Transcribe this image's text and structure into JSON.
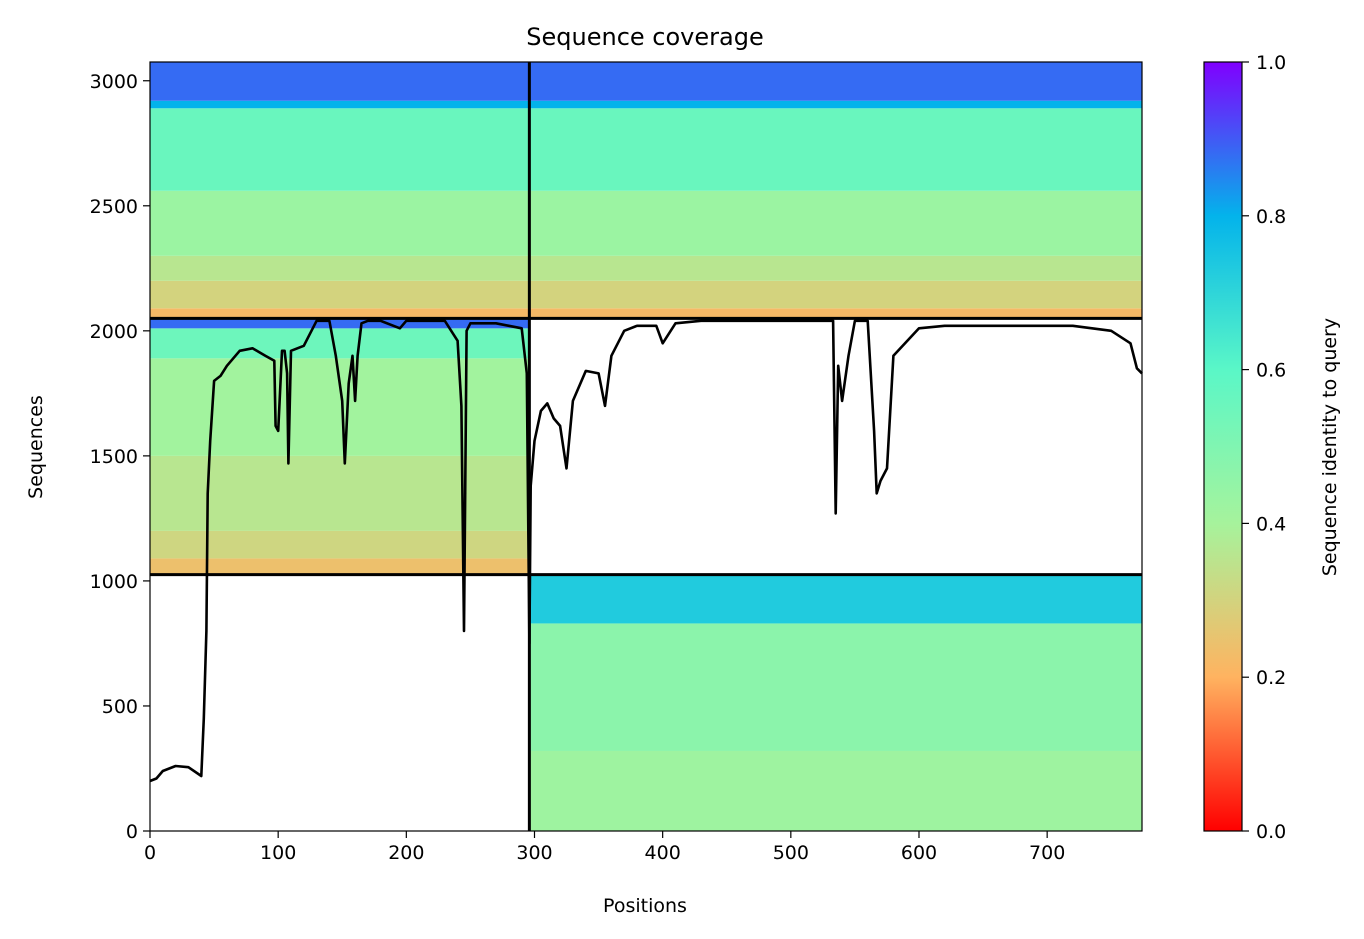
{
  "chart_data": {
    "type": "heatmap",
    "title": "Sequence coverage",
    "xlabel": "Positions",
    "ylabel": "Sequences",
    "xlim": [
      0,
      774
    ],
    "ylim": [
      0,
      3075
    ],
    "xticks": [
      "0",
      "100",
      "200",
      "300",
      "400",
      "500",
      "600",
      "700"
    ],
    "yticks": [
      "0",
      "500",
      "1000",
      "1500",
      "2000",
      "2500",
      "3000"
    ],
    "colorbar": {
      "label": "Sequence identity to query",
      "range": [
        0,
        1
      ],
      "ticks": [
        "0.0",
        "0.2",
        "0.4",
        "0.6",
        "0.8",
        "1.0"
      ],
      "colormap": "rainbow_r",
      "colors": [
        "#ff0000",
        "#ffb360",
        "#a6f39c",
        "#5af7c7",
        "#03b3eb",
        "#8000ff"
      ]
    },
    "blocks": [
      {
        "x": [
          296,
          774
        ],
        "y": [
          0,
          1025
        ],
        "identity_bands": [
          {
            "y": [
              0,
              320
            ],
            "identity": 0.42
          },
          {
            "y": [
              320,
              830
            ],
            "identity": 0.47
          },
          {
            "y": [
              830,
              1025
            ],
            "identity": 0.73
          }
        ]
      },
      {
        "x": [
          0,
          296
        ],
        "y": [
          1025,
          2050
        ],
        "identity_bands": [
          {
            "y": [
              1025,
              1090
            ],
            "identity": 0.24
          },
          {
            "y": [
              1090,
              1200
            ],
            "identity": 0.31
          },
          {
            "y": [
              1200,
              1500
            ],
            "identity": 0.36
          },
          {
            "y": [
              1500,
              1890
            ],
            "identity": 0.41
          },
          {
            "y": [
              1890,
              2010
            ],
            "identity": 0.55
          },
          {
            "y": [
              2010,
              2050
            ],
            "identity": 0.88
          }
        ]
      },
      {
        "x": [
          0,
          774
        ],
        "y": [
          2050,
          3075
        ],
        "identity_bands": [
          {
            "y": [
              2050,
              2090
            ],
            "identity": 0.22
          },
          {
            "y": [
              2090,
              2200
            ],
            "identity": 0.3
          },
          {
            "y": [
              2200,
              2300
            ],
            "identity": 0.36
          },
          {
            "y": [
              2300,
              2560
            ],
            "identity": 0.43
          },
          {
            "y": [
              2560,
              2890
            ],
            "identity": 0.56
          },
          {
            "y": [
              2890,
              2920
            ],
            "identity": 0.8
          },
          {
            "y": [
              2920,
              3075
            ],
            "identity": 0.88
          }
        ]
      }
    ],
    "separators": {
      "x": [
        296
      ],
      "y": [
        1025,
        2050
      ]
    },
    "coverage_line": {
      "x": [
        0,
        5,
        10,
        20,
        30,
        40,
        42,
        44,
        45,
        47,
        50,
        55,
        60,
        70,
        80,
        90,
        97,
        98,
        100,
        103,
        105,
        107,
        108,
        110,
        115,
        120,
        130,
        140,
        145,
        150,
        152,
        155,
        158,
        160,
        162,
        165,
        170,
        180,
        195,
        200,
        210,
        230,
        240,
        243,
        245,
        247,
        250,
        260,
        270,
        280,
        290,
        294,
        296,
        297,
        300,
        305,
        310,
        315,
        320,
        325,
        330,
        340,
        350,
        355,
        360,
        370,
        380,
        395,
        400,
        410,
        430,
        450,
        480,
        490,
        500,
        520,
        533,
        535,
        537,
        540,
        545,
        550,
        560,
        565,
        567,
        570,
        575,
        580,
        600,
        620,
        650,
        680,
        700,
        720,
        750,
        765,
        770,
        774
      ],
      "y": [
        200,
        210,
        240,
        260,
        255,
        220,
        450,
        800,
        1350,
        1560,
        1800,
        1820,
        1860,
        1920,
        1930,
        1900,
        1880,
        1620,
        1600,
        1920,
        1920,
        1830,
        1470,
        1920,
        1930,
        1940,
        2040,
        2040,
        1900,
        1720,
        1470,
        1790,
        1900,
        1720,
        1900,
        2030,
        2040,
        2040,
        2010,
        2040,
        2040,
        2040,
        1960,
        1700,
        800,
        2000,
        2030,
        2030,
        2030,
        2020,
        2010,
        1830,
        750,
        1380,
        1560,
        1680,
        1710,
        1650,
        1620,
        1450,
        1720,
        1840,
        1830,
        1700,
        1900,
        2000,
        2020,
        2020,
        1950,
        2030,
        2040,
        2040,
        2040,
        2040,
        2040,
        2040,
        2040,
        1270,
        1860,
        1720,
        1900,
        2040,
        2040,
        1600,
        1350,
        1400,
        1450,
        1900,
        2010,
        2020,
        2020,
        2020,
        2020,
        2020,
        2000,
        1950,
        1850,
        1830
      ]
    }
  }
}
